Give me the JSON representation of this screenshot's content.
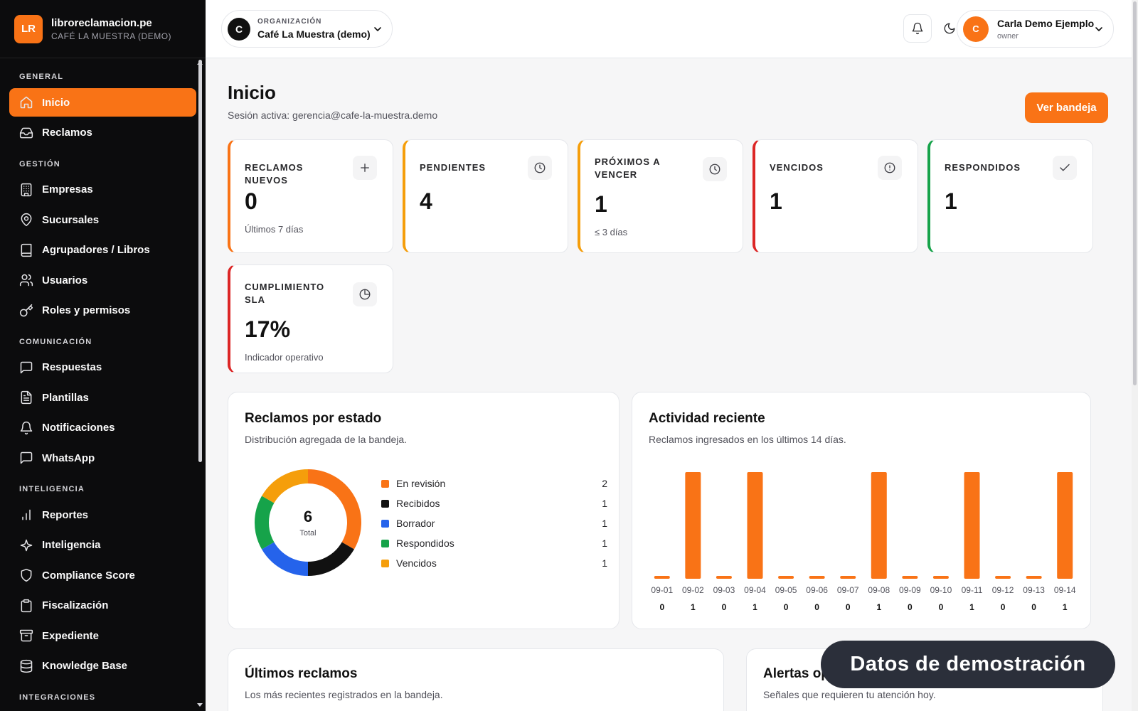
{
  "brand": {
    "logo": "LR",
    "name": "libroreclamacion.pe",
    "sub": "CAFÉ LA MUESTRA (DEMO)"
  },
  "sidebar": {
    "sections": [
      {
        "title": "GENERAL",
        "items": [
          {
            "label": "Inicio",
            "icon": "home-icon",
            "active": true
          },
          {
            "label": "Reclamos",
            "icon": "inbox-icon"
          }
        ]
      },
      {
        "title": "GESTIÓN",
        "items": [
          {
            "label": "Empresas",
            "icon": "building-icon"
          },
          {
            "label": "Sucursales",
            "icon": "map-pin-icon"
          },
          {
            "label": "Agrupadores / Libros",
            "icon": "book-icon"
          },
          {
            "label": "Usuarios",
            "icon": "users-icon"
          },
          {
            "label": "Roles y permisos",
            "icon": "key-icon"
          }
        ]
      },
      {
        "title": "COMUNICACIÓN",
        "items": [
          {
            "label": "Respuestas",
            "icon": "message-icon"
          },
          {
            "label": "Plantillas",
            "icon": "file-text-icon"
          },
          {
            "label": "Notificaciones",
            "icon": "bell-icon"
          },
          {
            "label": "WhatsApp",
            "icon": "chat-icon"
          }
        ]
      },
      {
        "title": "INTELIGENCIA",
        "items": [
          {
            "label": "Reportes",
            "icon": "bar-chart-icon"
          },
          {
            "label": "Inteligencia",
            "icon": "sparkles-icon"
          },
          {
            "label": "Compliance Score",
            "icon": "shield-icon"
          },
          {
            "label": "Fiscalización",
            "icon": "clipboard-icon"
          },
          {
            "label": "Expediente",
            "icon": "archive-icon"
          },
          {
            "label": "Knowledge Base",
            "icon": "database-icon"
          }
        ]
      },
      {
        "title": "INTEGRACIONES",
        "items": []
      }
    ]
  },
  "topbar": {
    "org_label": "ORGANIZACIÓN",
    "org_name": "Café La Muestra (demo)",
    "org_avatar": "C",
    "user_avatar": "C",
    "user_name": "Carla Demo Ejemplo",
    "user_role": "owner"
  },
  "page": {
    "title": "Inicio",
    "session": "Sesión activa: gerencia@cafe-la-muestra.demo",
    "primary_action": "Ver bandeja"
  },
  "kpis": [
    {
      "label": "RECLAMOS NUEVOS",
      "value": "0",
      "sub": "Últimos 7 días",
      "icon": "plus-icon",
      "color": "#f97316"
    },
    {
      "label": "PENDIENTES",
      "value": "4",
      "sub": "",
      "icon": "clock-icon",
      "color": "#f59e0b"
    },
    {
      "label": "PRÓXIMOS A VENCER",
      "value": "1",
      "sub": "≤ 3 días",
      "icon": "clock-icon",
      "color": "#f59e0b"
    },
    {
      "label": "VENCIDOS",
      "value": "1",
      "sub": "",
      "icon": "alert-circle-icon",
      "color": "#dc2626"
    },
    {
      "label": "RESPONDIDOS",
      "value": "1",
      "sub": "",
      "icon": "check-icon",
      "color": "#16a34a"
    },
    {
      "label": "CUMPLIMIENTO SLA",
      "value": "17%",
      "sub": "Indicador operativo",
      "icon": "gauge-icon",
      "color": "#dc2626"
    }
  ],
  "status_card": {
    "title": "Reclamos por estado",
    "subtitle": "Distribución agregada de la bandeja.",
    "total": "6",
    "total_label": "Total"
  },
  "activity_card": {
    "title": "Actividad reciente",
    "subtitle": "Reclamos ingresados en los últimos 14 días."
  },
  "latest_card": {
    "title": "Últimos reclamos",
    "subtitle": "Los más recientes registrados en la bandeja."
  },
  "alerts_card": {
    "title": "Alertas operativas",
    "subtitle": "Señales que requieren tu atención hoy."
  },
  "floating_note": "Datos de demostración",
  "chart_data": [
    {
      "type": "pie",
      "title": "Reclamos por estado",
      "categories": [
        "En revisión",
        "Recibidos",
        "Borrador",
        "Respondidos",
        "Vencidos"
      ],
      "values": [
        2,
        1,
        1,
        1,
        1
      ],
      "colors": [
        "#f97316",
        "#111111",
        "#2563eb",
        "#16a34a",
        "#f59e0b"
      ],
      "legend": "right"
    },
    {
      "type": "bar",
      "title": "Actividad reciente",
      "categories": [
        "09-01",
        "09-02",
        "09-03",
        "09-04",
        "09-05",
        "09-06",
        "09-07",
        "09-08",
        "09-09",
        "09-10",
        "09-11",
        "09-12",
        "09-13",
        "09-14"
      ],
      "values": [
        0,
        1,
        0,
        1,
        0,
        0,
        0,
        1,
        0,
        0,
        1,
        0,
        0,
        1
      ],
      "ylim": [
        0,
        1
      ],
      "color": "#f97316",
      "grid": false
    }
  ]
}
